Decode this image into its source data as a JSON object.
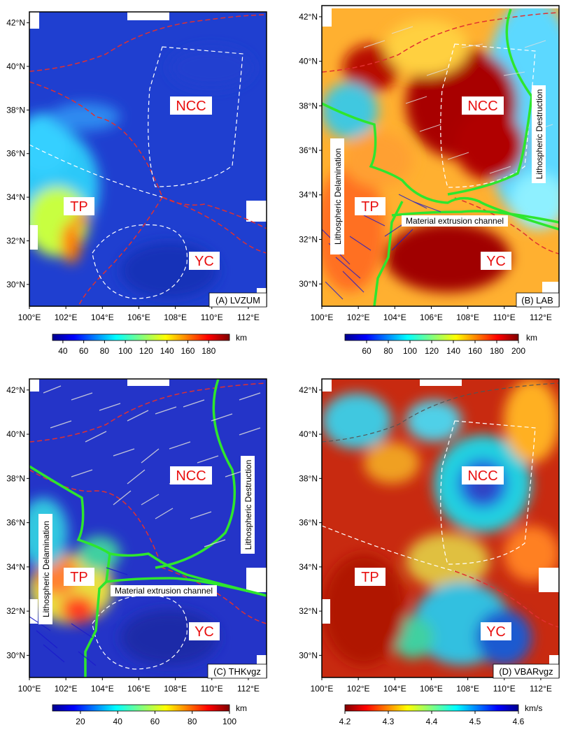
{
  "panels": [
    {
      "id": "A",
      "label": "(A) LVZUM",
      "lat_ticks": [
        "42°N",
        "40°N",
        "38°N",
        "36°N",
        "34°N",
        "32°N",
        "30°N"
      ],
      "lon_ticks": [
        "100°E",
        "102°E",
        "104°E",
        "106°E",
        "108°E",
        "110°E",
        "112°E"
      ],
      "regions": {
        "ncc": "NCC",
        "tp": "TP",
        "yc": "YC"
      },
      "annotations": {},
      "colorbar": {
        "ticks": [
          "40",
          "60",
          "80",
          "100",
          "120",
          "140",
          "160",
          "180"
        ],
        "unit": "km",
        "range": [
          30,
          200
        ]
      }
    },
    {
      "id": "B",
      "label": "(B) LAB",
      "lat_ticks": [
        "42°N",
        "40°N",
        "38°N",
        "36°N",
        "34°N",
        "32°N",
        "30°N"
      ],
      "lon_ticks": [
        "100°E",
        "102°E",
        "104°E",
        "106°E",
        "108°E",
        "110°E",
        "112°E"
      ],
      "regions": {
        "ncc": "NCC",
        "tp": "TP",
        "yc": "YC"
      },
      "annotations": {
        "left_vertical": "Lithospheric Delamination",
        "right_vertical": "Lithospheric Destruction",
        "channel": "Material extrusion channel"
      },
      "colorbar": {
        "ticks": [
          "60",
          "80",
          "100",
          "120",
          "140",
          "160",
          "180",
          "200"
        ],
        "unit": "km",
        "range": [
          40,
          200
        ]
      }
    },
    {
      "id": "C",
      "label": "(C) THKvgz",
      "lat_ticks": [
        "42°N",
        "40°N",
        "38°N",
        "36°N",
        "34°N",
        "32°N",
        "30°N"
      ],
      "lon_ticks": [
        "100°E",
        "102°E",
        "104°E",
        "106°E",
        "108°E",
        "110°E",
        "112°E"
      ],
      "regions": {
        "ncc": "NCC",
        "tp": "TP",
        "yc": "YC"
      },
      "annotations": {
        "left_vertical": "Lithospheric Delamination",
        "right_vertical": "Lithospheric Destruction",
        "channel": "Material extrusion channel"
      },
      "colorbar": {
        "ticks": [
          "20",
          "40",
          "60",
          "80",
          "100"
        ],
        "unit": "km",
        "range": [
          5,
          100
        ]
      }
    },
    {
      "id": "D",
      "label": "(D) VBARvgz",
      "lat_ticks": [
        "42°N",
        "40°N",
        "38°N",
        "36°N",
        "34°N",
        "32°N",
        "30°N"
      ],
      "lon_ticks": [
        "100°E",
        "102°E",
        "104°E",
        "106°E",
        "108°E",
        "110°E",
        "112°E"
      ],
      "regions": {
        "ncc": "NCC",
        "tp": "TP",
        "yc": "YC"
      },
      "annotations": {},
      "colorbar": {
        "ticks": [
          "4.2",
          "4.3",
          "4.4",
          "4.5",
          "4.6"
        ],
        "unit": "km/s",
        "range": [
          4.2,
          4.6
        ]
      }
    }
  ],
  "colors": {
    "block_boundary": "#e03030",
    "region_outline": "#ffffff",
    "interpretation_line": "#2ee62e",
    "label_text": "#e81010",
    "anisotropy_fast": "#dddddd",
    "anisotropy_blue": "#1a1acc"
  }
}
